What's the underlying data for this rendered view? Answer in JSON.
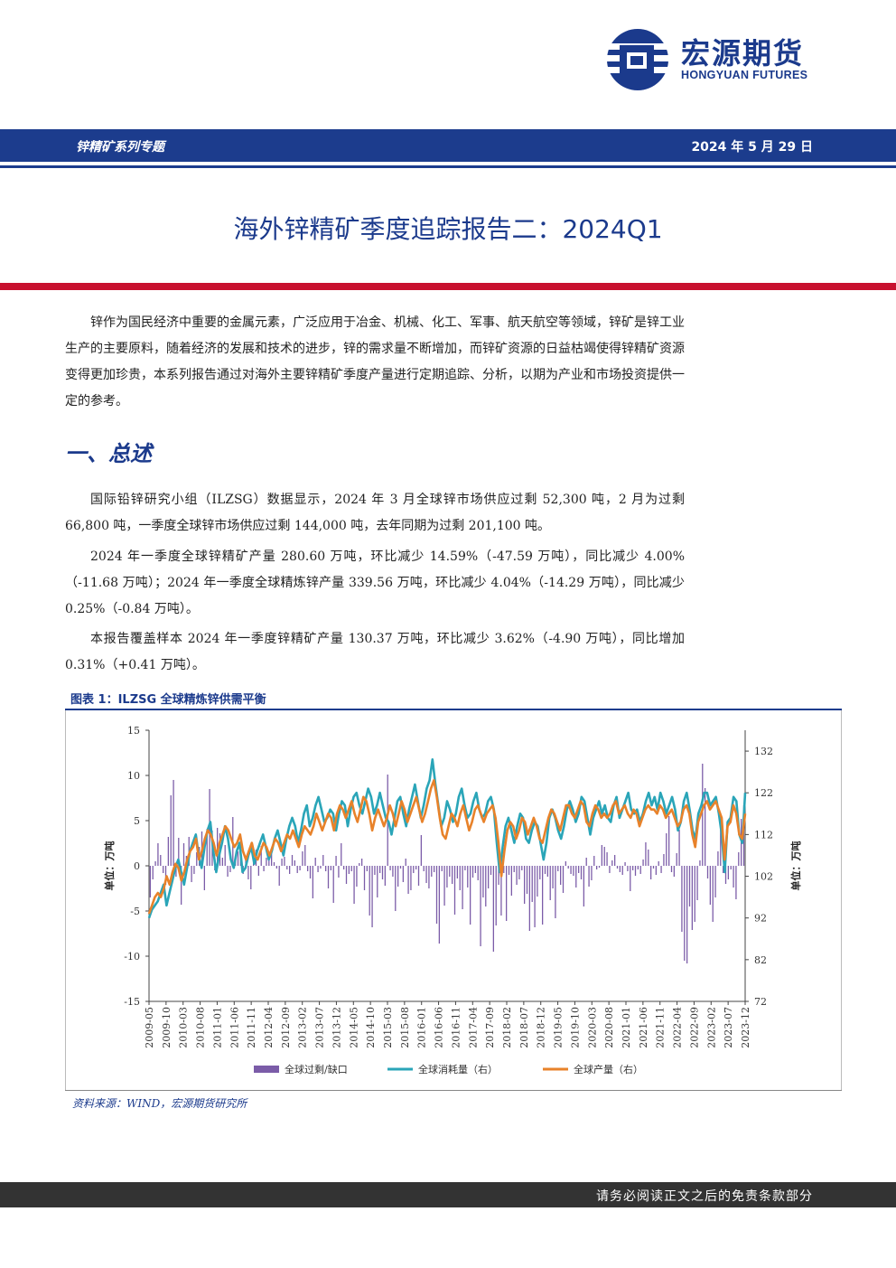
{
  "logo": {
    "cn": "宏源期货",
    "en": "HONGYUAN FUTURES"
  },
  "header": {
    "series": "锌精矿系列专题",
    "date": "2024 年 5 月 29 日"
  },
  "title": "海外锌精矿季度追踪报告二：2024Q1",
  "intro": "锌作为国民经济中重要的金属元素，广泛应用于冶金、机械、化工、军事、航天航空等领域，锌矿是锌工业生产的主要原料，随着经济的发展和技术的进步，锌的需求量不断增加，而锌矿资源的日益枯竭使得锌精矿资源变得更加珍贵，本系列报告通过对海外主要锌精矿季度产量进行定期追踪、分析，以期为产业和市场投资提供一定的参考。",
  "section1": "一、总述",
  "p1": "国际铅锌研究小组（ILZSG）数据显示，2024 年 3 月全球锌市场供应过剩 52,300 吨，2 月为过剩 66,800 吨，一季度全球锌市场供应过剩 144,000 吨，去年同期为过剩 201,100 吨。",
  "p2": "2024 年一季度全球锌精矿产量 280.60 万吨，环比减少 14.59%（-47.59 万吨），同比减少 4.00%（-11.68 万吨）；2024 年一季度全球精炼锌产量 339.56 万吨，环比减少 4.04%（-14.29 万吨），同比减少 0.25%（-0.84 万吨）。",
  "p3": "本报告覆盖样本 2024 年一季度锌精矿产量 130.37 万吨，环比减少 3.62%（-4.90 万吨），同比增加 0.31%（+0.41 万吨）。",
  "figure_caption": "图表 1：ILZSG 全球精炼锌供需平衡",
  "source": "资料来源：WIND，宏源期货研究所",
  "footer": "请务必阅读正文之后的免责条款部分",
  "colors": {
    "bar": "#7b5ca8",
    "consumption": "#2aa5b8",
    "production": "#e8822a",
    "brand": "#1b3a8c",
    "red": "#c8102e"
  },
  "chart_data": {
    "type": "bar",
    "left_axis": {
      "label": "单位：万吨",
      "ylim": [
        -15,
        15
      ],
      "ticks": [
        "15",
        "10",
        "5",
        "0",
        "-5",
        "-10",
        "-15"
      ]
    },
    "right_axis": {
      "label": "单位：万吨",
      "ylim": [
        72,
        137
      ],
      "ticks": [
        "132",
        "122",
        "112",
        "102",
        "92",
        "82",
        "72"
      ]
    },
    "x_ticks": [
      "2009-05",
      "2009-10",
      "2010-03",
      "2010-08",
      "2011-01",
      "2011-06",
      "2011-11",
      "2012-04",
      "2012-09",
      "2013-02",
      "2013-07",
      "2013-12",
      "2014-05",
      "2014-10",
      "2015-03",
      "2015-08",
      "2016-01",
      "2016-06",
      "2016-11",
      "2017-04",
      "2017-09",
      "2018-02",
      "2018-07",
      "2018-12",
      "2019-05",
      "2019-10",
      "2020-03",
      "2020-08",
      "2021-01",
      "2021-06",
      "2021-11",
      "2022-04",
      "2022-09",
      "2023-02",
      "2023-07",
      "2023-12"
    ],
    "legend": [
      "全球过剩/缺口",
      "全球消耗量（右）",
      "全球产量（右）"
    ],
    "legend_position": "bottom",
    "series": [
      {
        "name": "全球过剩/缺口",
        "axis": "left",
        "kind": "bar",
        "values": [
          -3.5,
          -1.5,
          0.5,
          2.5,
          1.2,
          -0.8,
          -2.1,
          3.2,
          7.8,
          9.5,
          -1.2,
          3.1,
          -4.3,
          2.5,
          1.1,
          3.2,
          -1.8,
          -0.9,
          1.5,
          2.1,
          3.8,
          -2.7,
          4.1,
          8.5,
          3.9,
          -0.5,
          4.2,
          3.6,
          0.9,
          2.3,
          -1.2,
          -0.7,
          5.4,
          0.8,
          1.6,
          3.4,
          -0.9,
          0.7,
          -1.5,
          -2.6,
          0.5,
          1.8,
          -1.1,
          2.2,
          -0.6,
          0.9,
          1.3,
          1.5,
          0.4,
          -0.3,
          -2.2,
          0.8,
          1.0,
          -0.4,
          -0.9,
          1.2,
          0.6,
          -0.8,
          -0.5,
          1.6,
          2.3,
          -0.6,
          -1.4,
          -3.6,
          0.9,
          -0.7,
          -0.3,
          1.2,
          -0.6,
          -2.5,
          -0.5,
          -4.1,
          1.1,
          -1.3,
          2.5,
          -0.4,
          -2.0,
          -0.9,
          -0.6,
          -4.2,
          -2.3,
          0.3,
          0.8,
          -2.7,
          -0.6,
          -5.5,
          -6.8,
          -1.0,
          -3.5,
          -0.8,
          -1.5,
          -2.2,
          10.1,
          -0.5,
          -1.2,
          -5.0,
          -2.3,
          -0.3,
          -1.8,
          0.8,
          -3.1,
          -2.7,
          -0.8,
          -0.4,
          -2.2,
          3.4,
          -0.6,
          -1.9,
          -2.5,
          -1.2,
          -0.7,
          -6.4,
          -8.6,
          -0.6,
          -4.4,
          -2.4,
          -1.2,
          -2.0,
          -5.4,
          -1.4,
          -2.7,
          -4.8,
          -0.5,
          -2.4,
          -6.5,
          -1.3,
          -0.8,
          -1.6,
          -8.9,
          -3.5,
          -4.5,
          -2.5,
          -1.0,
          -9.5,
          -6.6,
          -2.1,
          -5.5,
          -0.8,
          -6.1,
          -1.0,
          -3.3,
          -0.7,
          -2.1,
          -1.5,
          -0.5,
          -4.2,
          -3.1,
          -7.2,
          -4.0,
          -6.8,
          -3.4,
          -1.5,
          -6.5,
          -0.9,
          -1.2,
          -3.8,
          -2.5,
          -5.8,
          -0.6,
          -2.1,
          -3.0,
          0.5,
          -0.3,
          -0.9,
          -1.1,
          -2.4,
          -0.8,
          -1.5,
          -4.5,
          0.9,
          -2.3,
          -1.6,
          1.1,
          -0.4,
          -0.2,
          2.3,
          2.1,
          1.5,
          -0.8,
          0.6,
          1.2,
          -0.3,
          -0.7,
          -1.0,
          0.4,
          -0.6,
          -2.8,
          -0.5,
          -1.1,
          -0.4,
          -0.9,
          0.7,
          2.6,
          1.8,
          -1.5,
          -0.3,
          -1.0,
          0.5,
          -0.8,
          1.3,
          3.6,
          5.5,
          -0.7,
          -1.2,
          1.4,
          4.0,
          -7.3,
          -10.5,
          -10.8,
          -4.5,
          -7.1,
          -6.2,
          -3.8,
          0.6,
          11.3,
          8.6,
          -1.4,
          -4.3,
          -6.2,
          -3.5,
          1.6,
          5.2,
          -0.8,
          -2.0,
          -1.5,
          -0.4,
          -2.4,
          -3.7,
          1.5,
          5.2,
          6.7
        ]
      },
      {
        "name": "全球消耗量（右）",
        "axis": "right",
        "kind": "line",
        "values": [
          92,
          94,
          95,
          96,
          98,
          100,
          95,
          98,
          101,
          104,
          106,
          103,
          100,
          104,
          108,
          110,
          112,
          107,
          104,
          109,
          113,
          115,
          108,
          103,
          107,
          110,
          114,
          111,
          106,
          104,
          108,
          110,
          103,
          104,
          107,
          109,
          105,
          108,
          110,
          112,
          109,
          106,
          108,
          111,
          113,
          110,
          107,
          111,
          114,
          116,
          114,
          110,
          113,
          117,
          119,
          114,
          116,
          119,
          121,
          118,
          115,
          116,
          118,
          117,
          113,
          117,
          120,
          119,
          114,
          118,
          121,
          122,
          119,
          117,
          120,
          123,
          121,
          117,
          119,
          122,
          119,
          116,
          115,
          112,
          116,
          120,
          121,
          117,
          114,
          118,
          121,
          124,
          120,
          116,
          119,
          123,
          125,
          130,
          124,
          119,
          114,
          116,
          120,
          118,
          115,
          117,
          121,
          123,
          119,
          116,
          117,
          120,
          122,
          118,
          116,
          117,
          120,
          121,
          118,
          110,
          103,
          109,
          114,
          116,
          113,
          110,
          114,
          117,
          116,
          111,
          110,
          113,
          115,
          114,
          110,
          106,
          110,
          116,
          118,
          116,
          113,
          111,
          114,
          118,
          120,
          118,
          115,
          117,
          121,
          120,
          116,
          112,
          116,
          118,
          120,
          117,
          119,
          116,
          115,
          119,
          121,
          116,
          118,
          120,
          122,
          118,
          117,
          118,
          115,
          117,
          120,
          122,
          119,
          121,
          118,
          122,
          120,
          117,
          119,
          121,
          118,
          113,
          115,
          120,
          122,
          118,
          113,
          111,
          117,
          119,
          122,
          122,
          119,
          120,
          121,
          117,
          112,
          103,
          115,
          116,
          121,
          120,
          112,
          110,
          122
        ]
      },
      {
        "name": "全球产量（右）",
        "axis": "right",
        "kind": "line",
        "values": [
          93,
          95,
          97,
          98,
          97,
          99,
          102,
          100,
          103,
          105,
          104,
          101,
          103,
          106,
          108,
          109,
          111,
          106,
          108,
          111,
          113,
          112,
          110,
          107,
          110,
          112,
          114,
          113,
          111,
          109,
          110,
          112,
          108,
          106,
          108,
          110,
          107,
          106,
          108,
          110,
          109,
          107,
          109,
          111,
          110,
          108,
          110,
          112,
          111,
          113,
          111,
          109,
          112,
          114,
          113,
          112,
          114,
          117,
          115,
          113,
          115,
          117,
          116,
          113,
          117,
          119,
          118,
          116,
          118,
          120,
          117,
          115,
          118,
          121,
          120,
          117,
          113,
          116,
          118,
          116,
          114,
          116,
          119,
          117,
          114,
          117,
          120,
          118,
          115,
          117,
          119,
          121,
          118,
          115,
          117,
          120,
          123,
          125,
          121,
          116,
          112,
          111,
          114,
          117,
          116,
          114,
          117,
          119,
          116,
          113,
          115,
          118,
          119,
          117,
          115,
          117,
          118,
          119,
          116,
          110,
          102,
          108,
          113,
          115,
          114,
          111,
          113,
          116,
          115,
          112,
          114,
          116,
          114,
          111,
          110,
          113,
          116,
          118,
          117,
          115,
          113,
          116,
          119,
          119,
          117,
          116,
          118,
          120,
          119,
          115,
          114,
          117,
          119,
          118,
          116,
          117,
          116,
          117,
          119,
          120,
          117,
          118,
          119,
          117,
          116,
          118,
          117,
          114,
          116,
          118,
          119,
          118,
          118,
          117,
          119,
          118,
          116,
          117,
          118,
          116,
          114,
          115,
          118,
          119,
          117,
          112,
          109,
          115,
          117,
          119,
          120,
          118,
          119,
          120,
          118,
          116,
          106,
          114,
          115,
          119,
          117,
          112,
          111,
          117
        ]
      }
    ]
  }
}
